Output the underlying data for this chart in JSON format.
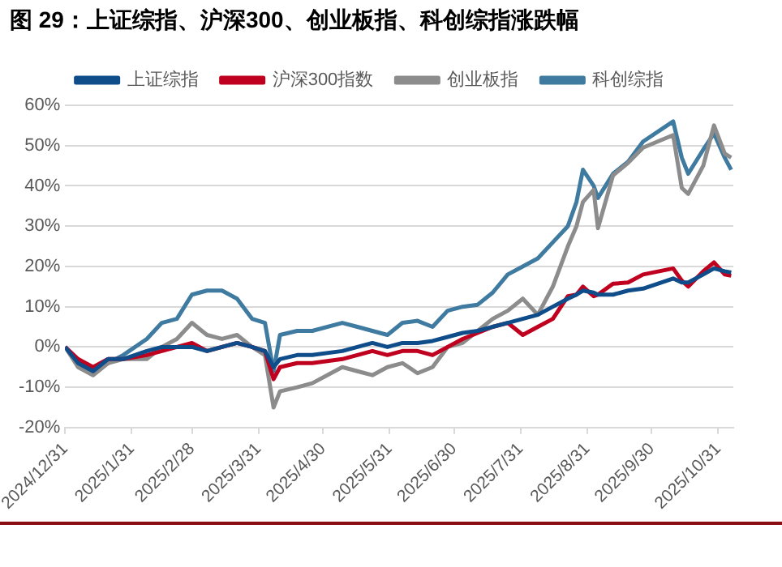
{
  "chart_data": {
    "type": "line",
    "title": "图 29：上证综指、沪深300、创业板指、科创综指涨跌幅",
    "x": [
      "2024-12-31",
      "2025-01-06",
      "2025-01-13",
      "2025-01-20",
      "2025-01-27",
      "2025-02-07",
      "2025-02-14",
      "2025-02-21",
      "2025-02-28",
      "2025-03-07",
      "2025-03-14",
      "2025-03-21",
      "2025-03-28",
      "2025-04-03",
      "2025-04-07",
      "2025-04-10",
      "2025-04-18",
      "2025-04-25",
      "2025-05-09",
      "2025-05-16",
      "2025-05-23",
      "2025-05-30",
      "2025-06-06",
      "2025-06-13",
      "2025-06-20",
      "2025-06-27",
      "2025-07-04",
      "2025-07-11",
      "2025-07-18",
      "2025-07-25",
      "2025-08-01",
      "2025-08-08",
      "2025-08-15",
      "2025-08-22",
      "2025-08-26",
      "2025-08-29",
      "2025-09-03",
      "2025-09-05",
      "2025-09-12",
      "2025-09-19",
      "2025-09-26",
      "2025-10-10",
      "2025-10-14",
      "2025-10-17",
      "2025-10-24",
      "2025-10-29",
      "2025-11-03",
      "2025-11-06"
    ],
    "series": [
      {
        "name": "上证综指",
        "color": "#0f4c8a",
        "values": [
          0,
          -4,
          -6,
          -3,
          -3,
          -1,
          0,
          0,
          0,
          -1,
          0,
          1,
          0,
          -1,
          -5,
          -3,
          -2,
          -2,
          -1,
          0,
          1,
          0,
          1,
          1,
          1.5,
          2.5,
          3.5,
          4,
          5,
          6,
          7,
          8,
          10,
          12,
          13,
          14,
          13.5,
          13,
          13,
          14,
          14.5,
          17,
          16,
          16,
          18,
          19.5,
          18.8,
          18.5
        ]
      },
      {
        "name": "沪深300指数",
        "color": "#c0001f",
        "values": [
          0,
          -3,
          -5,
          -3,
          -3,
          -2,
          -1,
          0,
          1,
          -1,
          0,
          1,
          0,
          -1,
          -8,
          -5,
          -4,
          -4,
          -3,
          -2,
          -1,
          -2,
          -1,
          -1,
          -2,
          0,
          2,
          3.5,
          5,
          6,
          3,
          5,
          7,
          12.6,
          13,
          15,
          12.6,
          13,
          15.7,
          16,
          18,
          19.5,
          16.5,
          15,
          18.8,
          21,
          18,
          17.7
        ]
      },
      {
        "name": "创业板指",
        "color": "#8c8c8c",
        "values": [
          0,
          -5,
          -7,
          -4,
          -3,
          -3,
          0,
          2,
          6,
          3,
          2,
          3,
          0,
          -2,
          -15,
          -11,
          -10,
          -9,
          -5,
          -6,
          -7,
          -5,
          -4,
          -6.5,
          -5,
          0,
          1,
          4,
          7,
          9,
          12,
          8,
          15,
          25,
          30,
          36,
          39,
          29.5,
          42.6,
          45.7,
          49.5,
          52.6,
          39.5,
          38,
          45,
          55,
          48,
          47
        ]
      },
      {
        "name": "科创综指",
        "color": "#3f7aa0",
        "values": [
          0,
          -4,
          -6,
          -4,
          -2,
          2,
          6,
          7,
          13,
          14,
          14,
          12,
          7,
          6,
          -6,
          3,
          4,
          4,
          6,
          5,
          4,
          3,
          6,
          6.5,
          5,
          9,
          10,
          10.5,
          13.5,
          18,
          20,
          22,
          26,
          30,
          36,
          44,
          40,
          37,
          43,
          46,
          51,
          56,
          47,
          43,
          49,
          53,
          47,
          44
        ]
      }
    ],
    "xlim": [
      "2024-12-31",
      "2025-11-07"
    ],
    "xticks": [
      {
        "value": "2024-12-31",
        "label": "2024/12/31"
      },
      {
        "value": "2025-01-31",
        "label": "2025/1/31"
      },
      {
        "value": "2025-02-28",
        "label": "2025/2/28"
      },
      {
        "value": "2025-03-31",
        "label": "2025/3/31"
      },
      {
        "value": "2025-04-30",
        "label": "2025/4/30"
      },
      {
        "value": "2025-05-31",
        "label": "2025/5/31"
      },
      {
        "value": "2025-06-30",
        "label": "2025/6/30"
      },
      {
        "value": "2025-07-31",
        "label": "2025/7/31"
      },
      {
        "value": "2025-08-31",
        "label": "2025/8/31"
      },
      {
        "value": "2025-09-30",
        "label": "2025/9/30"
      },
      {
        "value": "2025-10-31",
        "label": "2025/10/31"
      }
    ],
    "ylim": [
      -20,
      60
    ],
    "yticks": [
      {
        "value": -20,
        "label": "-20%"
      },
      {
        "value": -10,
        "label": "-10%"
      },
      {
        "value": 0,
        "label": "0%"
      },
      {
        "value": 10,
        "label": "10%"
      },
      {
        "value": 20,
        "label": "20%"
      },
      {
        "value": 30,
        "label": "30%"
      },
      {
        "value": 40,
        "label": "40%"
      },
      {
        "value": 50,
        "label": "50%"
      },
      {
        "value": 60,
        "label": "60%"
      }
    ],
    "grid": "y",
    "legend": "top",
    "marker": "none",
    "line_style": "solid"
  }
}
